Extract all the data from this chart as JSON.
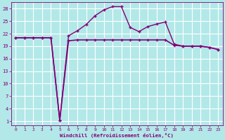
{
  "xlabel": "Windchill (Refroidissement éolien,°C)",
  "background_color": "#b2e8e8",
  "grid_color": "#c8e8e8",
  "line_color": "#800078",
  "x_ticks": [
    0,
    1,
    2,
    3,
    4,
    5,
    6,
    7,
    8,
    9,
    10,
    11,
    12,
    13,
    14,
    15,
    16,
    17,
    18,
    19,
    20,
    21,
    22,
    23
  ],
  "y_ticks": [
    1,
    4,
    7,
    10,
    13,
    16,
    19,
    22,
    25,
    28
  ],
  "ylim": [
    0.0,
    29.5
  ],
  "xlim": [
    -0.5,
    23.5
  ],
  "series1_x": [
    0,
    1,
    2,
    3,
    4,
    5,
    6,
    7,
    8,
    9,
    10,
    11,
    12,
    13,
    14,
    15,
    16,
    17,
    18,
    19,
    20,
    21,
    22,
    23
  ],
  "series1_y": [
    21.0,
    21.0,
    21.0,
    21.0,
    21.0,
    1.2,
    20.3,
    20.5,
    20.5,
    20.5,
    20.5,
    20.5,
    20.5,
    20.5,
    20.5,
    20.5,
    20.5,
    20.5,
    19.2,
    19.0,
    19.0,
    19.0,
    18.7,
    18.2
  ],
  "series2_x": [
    0,
    1,
    2,
    3,
    4,
    5,
    6,
    7,
    8,
    9,
    10,
    11,
    12,
    13,
    14,
    15,
    16,
    17,
    18,
    19,
    20,
    21,
    22,
    23
  ],
  "series2_y": [
    21.0,
    21.0,
    21.0,
    21.0,
    21.0,
    1.2,
    21.5,
    22.7,
    24.2,
    26.3,
    27.7,
    28.5,
    28.5,
    23.5,
    22.5,
    23.7,
    24.3,
    24.8,
    19.5,
    19.0,
    19.0,
    19.0,
    18.7,
    18.2
  ]
}
